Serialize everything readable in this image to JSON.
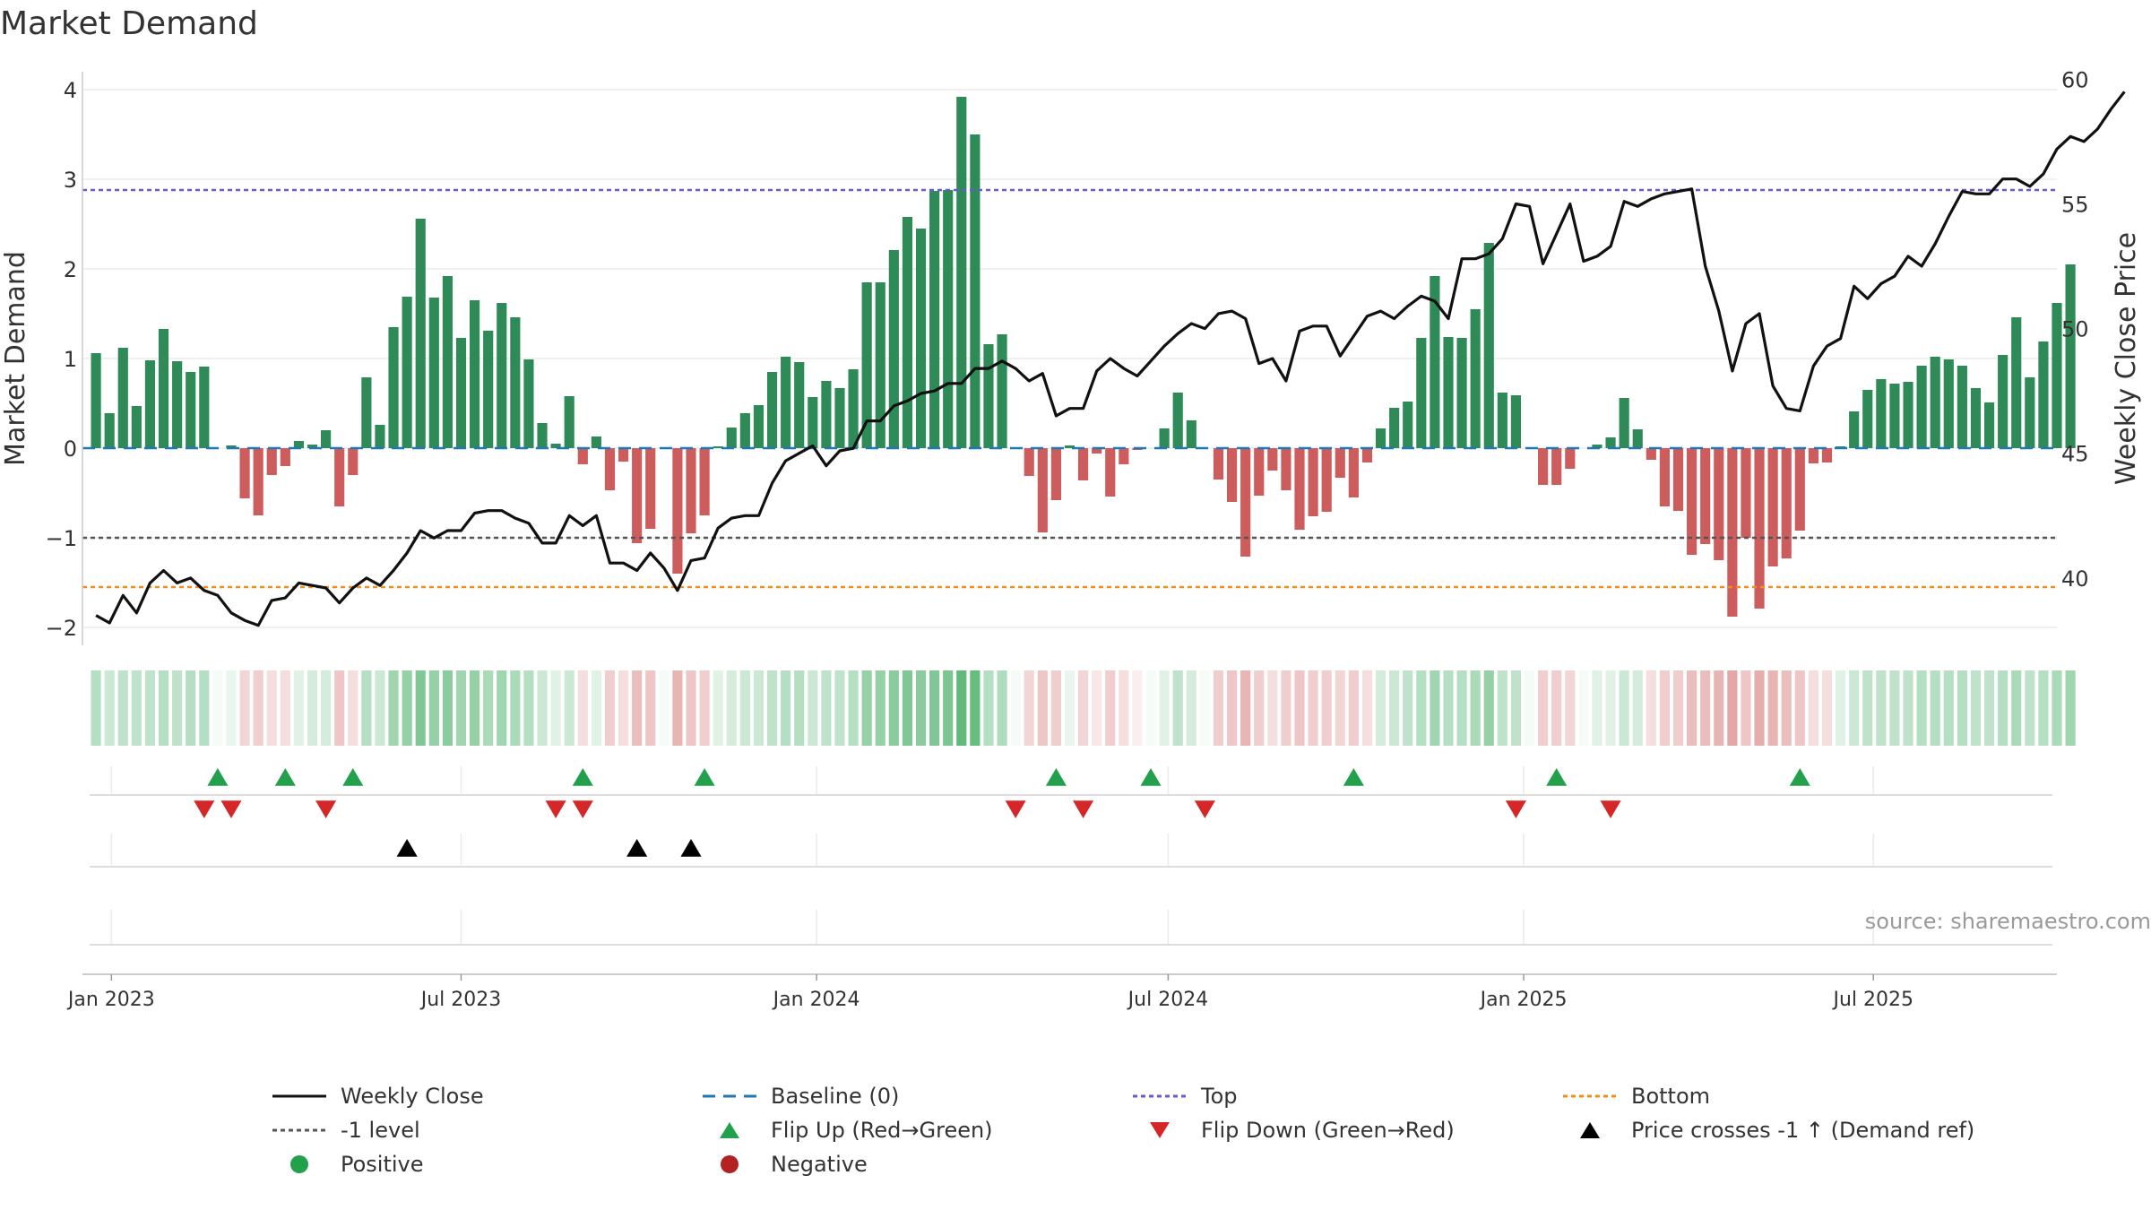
{
  "title": "Market Demand",
  "source": "source: sharemaestro.com",
  "colors": {
    "positive": "#2e8b57",
    "negative": "#cd5c5c",
    "price": "#111111",
    "top": "#6a5acd",
    "bottom": "#f28e1c",
    "minus1": "#555555",
    "baseline": "#1f77b4",
    "flip_up": "#22a04b",
    "flip_down": "#d62728",
    "cross": "#000000"
  },
  "legend": [
    {
      "key": "weekly_close",
      "label": "Weekly Close"
    },
    {
      "key": "baseline",
      "label": "Baseline (0)"
    },
    {
      "key": "top",
      "label": "Top"
    },
    {
      "key": "bottom",
      "label": "Bottom"
    },
    {
      "key": "minus1",
      "label": "-1 level"
    },
    {
      "key": "flip_up",
      "label": "Flip Up (Red→Green)"
    },
    {
      "key": "flip_down",
      "label": "Flip Down (Green→Red)"
    },
    {
      "key": "cross",
      "label": "Price crosses -1 ↑ (Demand ref)"
    },
    {
      "key": "positive",
      "label": "Positive"
    },
    {
      "key": "negative",
      "label": "Negative"
    }
  ],
  "chart_data": {
    "type": "bar+line",
    "title": "Market Demand",
    "ylabel_left": "Market Demand",
    "ylabel_right": "Weekly Close Price",
    "ylim_left": [
      -2.2,
      4.2
    ],
    "ylim_right": [
      37.3,
      60.3
    ],
    "yticks_left": [
      4,
      3,
      2,
      1,
      0,
      -1,
      -2
    ],
    "ytick_labels_left": [
      "4",
      "3",
      "2",
      "1",
      "0",
      "−1",
      "−2"
    ],
    "yticks_right": [
      60,
      55,
      50,
      45,
      40
    ],
    "ytick_labels_right": [
      "60",
      "55",
      "50",
      "45",
      "40"
    ],
    "x_start": "2022-12-25",
    "x_step_days": 7,
    "x_range_days": [
      -7,
      1015
    ],
    "xticks": [
      {
        "day": 8,
        "label": "Jan 2023"
      },
      {
        "day": 189,
        "label": "Jul 2023"
      },
      {
        "day": 373,
        "label": "Jan 2024"
      },
      {
        "day": 555,
        "label": "Jul 2024"
      },
      {
        "day": 739,
        "label": "Jan 2025"
      },
      {
        "day": 920,
        "label": "Jul 2025"
      }
    ],
    "top_level": 2.88,
    "bottom_level": -1.55,
    "minus1_level": -1.0,
    "demand": [
      1.06,
      0.39,
      1.12,
      0.47,
      0.98,
      1.33,
      0.97,
      0.85,
      0.91,
      0.0,
      0.03,
      -0.56,
      -0.75,
      -0.3,
      -0.2,
      0.08,
      0.04,
      0.2,
      -0.65,
      -0.3,
      0.79,
      0.26,
      1.35,
      1.69,
      2.56,
      1.68,
      1.92,
      1.23,
      1.65,
      1.31,
      1.62,
      1.46,
      0.99,
      0.28,
      0.05,
      0.58,
      -0.18,
      0.13,
      -0.47,
      -0.15,
      -1.06,
      -0.9,
      0.0,
      -1.4,
      -0.95,
      -0.75,
      0.02,
      0.23,
      0.39,
      0.48,
      0.85,
      1.02,
      0.96,
      0.57,
      0.75,
      0.67,
      0.88,
      1.85,
      1.85,
      2.21,
      2.58,
      2.45,
      2.87,
      2.88,
      3.92,
      3.5,
      1.16,
      1.27,
      0.0,
      -0.31,
      -0.94,
      -0.58,
      0.03,
      -0.36,
      -0.06,
      -0.54,
      -0.18,
      -0.02,
      0.0,
      0.22,
      0.62,
      0.31,
      0.0,
      -0.35,
      -0.6,
      -1.21,
      -0.53,
      -0.25,
      -0.47,
      -0.91,
      -0.76,
      -0.71,
      -0.33,
      -0.55,
      -0.16,
      0.22,
      0.45,
      0.52,
      1.23,
      1.92,
      1.24,
      1.23,
      1.55,
      2.29,
      0.62,
      0.59,
      0.0,
      -0.41,
      -0.41,
      -0.23,
      0.0,
      0.04,
      0.12,
      0.56,
      0.21,
      -0.13,
      -0.65,
      -0.7,
      -1.19,
      -1.07,
      -1.25,
      -1.88,
      -1.0,
      -1.79,
      -1.32,
      -1.23,
      -0.92,
      -0.17,
      -0.16,
      0.02,
      0.41,
      0.65,
      0.77,
      0.72,
      0.74,
      0.92,
      1.02,
      0.99,
      0.92,
      0.67,
      0.51,
      1.04,
      1.46,
      0.79,
      1.19,
      1.62,
      2.05
    ],
    "price": [
      38.5,
      38.2,
      39.3,
      38.6,
      39.8,
      40.3,
      39.8,
      40.0,
      39.5,
      39.3,
      38.6,
      38.3,
      38.1,
      39.1,
      39.2,
      39.8,
      39.7,
      39.6,
      39.0,
      39.6,
      40.0,
      39.7,
      40.3,
      41.0,
      41.9,
      41.6,
      41.9,
      41.9,
      42.6,
      42.7,
      42.7,
      42.4,
      42.2,
      41.4,
      41.4,
      42.5,
      42.1,
      42.5,
      40.6,
      40.6,
      40.3,
      41.0,
      40.4,
      39.5,
      40.7,
      40.8,
      42.0,
      42.4,
      42.5,
      42.5,
      43.8,
      44.7,
      45.0,
      45.3,
      44.5,
      45.1,
      45.2,
      46.3,
      46.3,
      46.9,
      47.1,
      47.4,
      47.5,
      47.8,
      47.8,
      48.4,
      48.4,
      48.7,
      48.4,
      47.9,
      48.2,
      46.5,
      46.8,
      46.8,
      48.3,
      48.8,
      48.4,
      48.1,
      48.7,
      49.3,
      49.8,
      50.2,
      50.0,
      50.6,
      50.7,
      50.4,
      48.6,
      48.8,
      47.9,
      49.9,
      50.1,
      50.1,
      48.9,
      49.7,
      50.5,
      50.7,
      50.4,
      50.9,
      51.3,
      51.1,
      50.4,
      52.8,
      52.8,
      53.0,
      53.6,
      55.0,
      54.9,
      52.6,
      53.8,
      55.0,
      52.7,
      52.9,
      53.3,
      55.1,
      54.9,
      55.2,
      55.4,
      55.5,
      55.6,
      52.5,
      50.7,
      48.3,
      50.2,
      50.6,
      47.7,
      46.8,
      46.7,
      48.5,
      49.3,
      49.6,
      51.7,
      51.2,
      51.8,
      52.1,
      52.9,
      52.5,
      53.4,
      54.5,
      55.5,
      55.4,
      55.4,
      56.0,
      56.0,
      55.7,
      56.2,
      57.2,
      57.7,
      57.5,
      58.0,
      58.8,
      59.5
    ],
    "strip_intensity": [
      0.35,
      0.25,
      0.3,
      0.3,
      0.3,
      0.35,
      0.3,
      0.35,
      0.35,
      0.1,
      0.1,
      0.25,
      0.3,
      0.2,
      0.2,
      0.15,
      0.2,
      0.2,
      0.35,
      0.2,
      0.35,
      0.25,
      0.45,
      0.5,
      0.6,
      0.5,
      0.55,
      0.45,
      0.5,
      0.4,
      0.45,
      0.4,
      0.35,
      0.25,
      0.15,
      0.25,
      0.2,
      0.15,
      0.3,
      0.2,
      0.4,
      0.35,
      0.1,
      0.45,
      0.35,
      0.3,
      0.15,
      0.2,
      0.25,
      0.25,
      0.3,
      0.35,
      0.35,
      0.25,
      0.3,
      0.3,
      0.35,
      0.5,
      0.5,
      0.55,
      0.6,
      0.55,
      0.6,
      0.62,
      0.75,
      0.72,
      0.35,
      0.38,
      0.1,
      0.25,
      0.35,
      0.3,
      0.1,
      0.25,
      0.15,
      0.3,
      0.2,
      0.1,
      0.1,
      0.15,
      0.3,
      0.2,
      0.1,
      0.3,
      0.35,
      0.45,
      0.3,
      0.2,
      0.3,
      0.35,
      0.3,
      0.3,
      0.25,
      0.3,
      0.2,
      0.2,
      0.25,
      0.3,
      0.35,
      0.45,
      0.35,
      0.35,
      0.4,
      0.5,
      0.3,
      0.3,
      0.1,
      0.3,
      0.3,
      0.25,
      0.1,
      0.15,
      0.15,
      0.25,
      0.2,
      0.2,
      0.3,
      0.3,
      0.4,
      0.4,
      0.45,
      0.55,
      0.35,
      0.5,
      0.45,
      0.4,
      0.35,
      0.2,
      0.2,
      0.15,
      0.25,
      0.3,
      0.3,
      0.3,
      0.3,
      0.35,
      0.35,
      0.35,
      0.35,
      0.3,
      0.3,
      0.35,
      0.4,
      0.3,
      0.35,
      0.4,
      0.45
    ],
    "flip_up_weeks": [
      9,
      14,
      19,
      36,
      45,
      71,
      78,
      93,
      108,
      126
    ],
    "flip_down_weeks": [
      8,
      10,
      17,
      34,
      36,
      68,
      73,
      82,
      105,
      112
    ],
    "price_cross_weeks": [
      23,
      40,
      44
    ]
  }
}
